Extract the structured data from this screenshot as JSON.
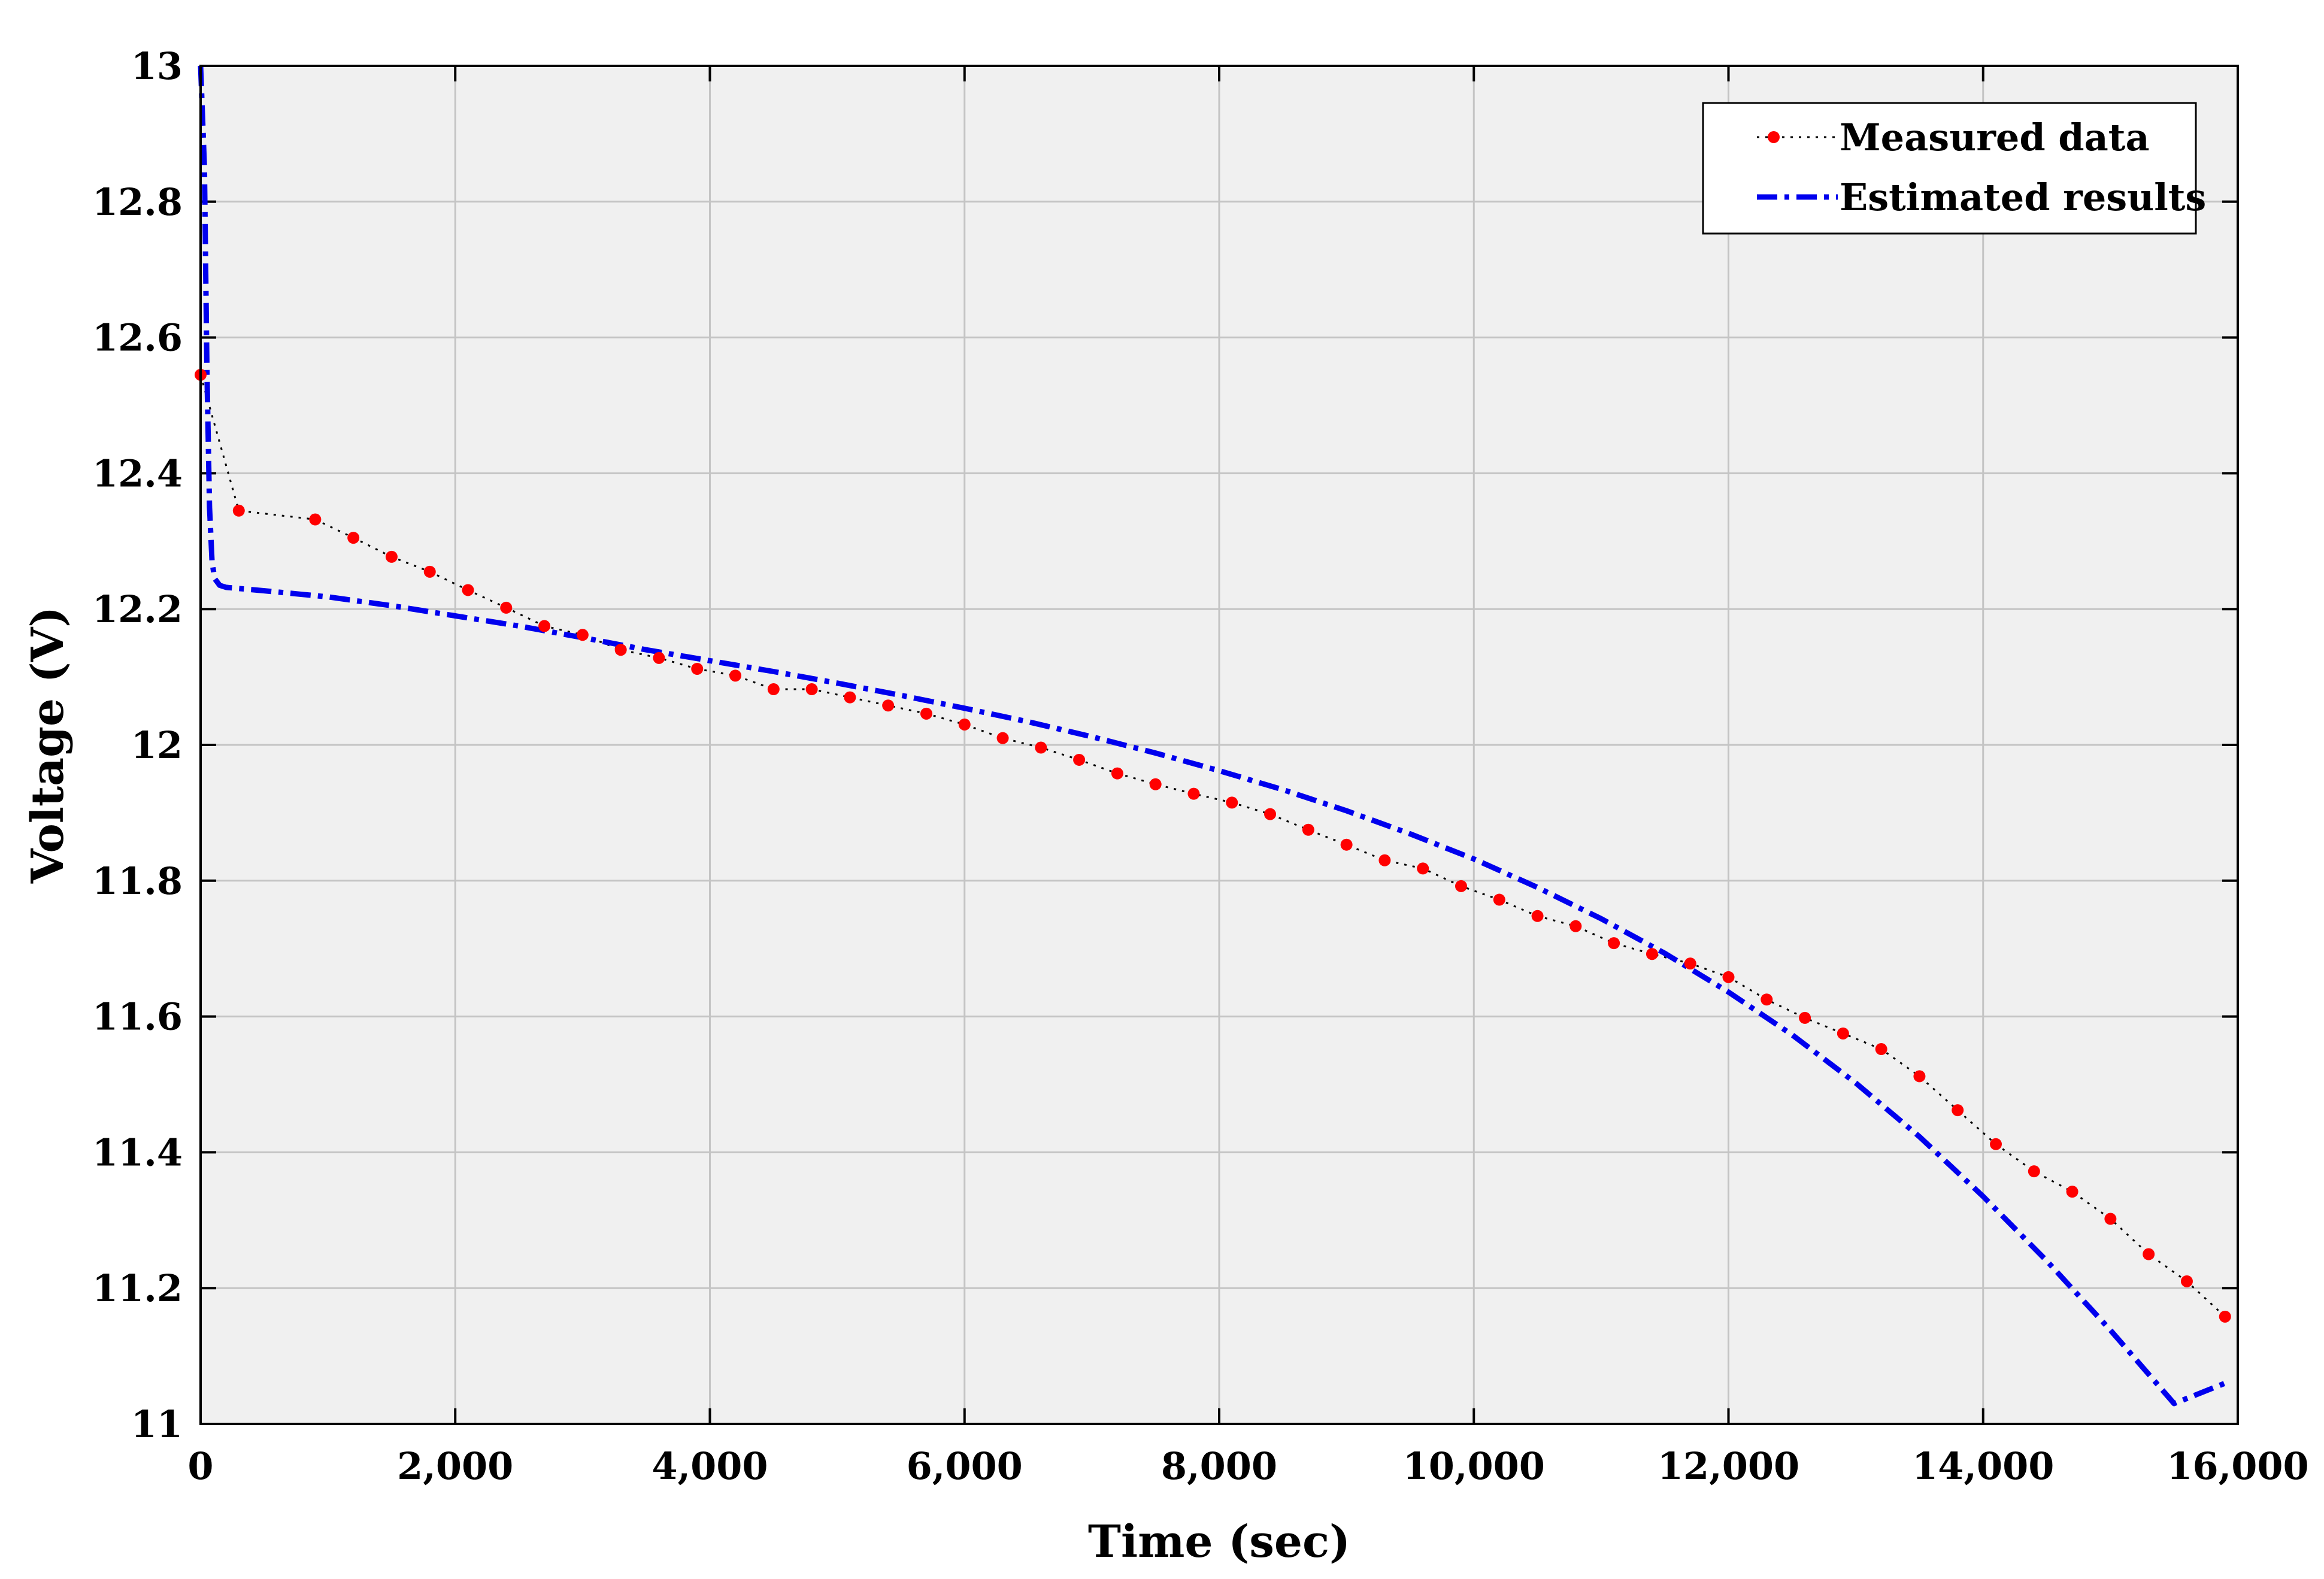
{
  "chart_data": {
    "type": "line",
    "xlabel": "Time (sec)",
    "ylabel": "Voltage (V)",
    "xlim": [
      0,
      16000
    ],
    "ylim": [
      11,
      13
    ],
    "x_ticks": [
      0,
      2000,
      4000,
      6000,
      8000,
      10000,
      12000,
      14000,
      16000
    ],
    "x_tick_labels": [
      "0",
      "2,000",
      "4,000",
      "6,000",
      "8,000",
      "10,000",
      "12,000",
      "14,000",
      "16,000"
    ],
    "y_ticks": [
      11,
      11.2,
      11.4,
      11.6,
      11.8,
      12,
      12.2,
      12.4,
      12.6,
      12.8,
      13
    ],
    "y_tick_labels": [
      "11",
      "11.2",
      "11.4",
      "11.6",
      "11.8",
      "12",
      "12.2",
      "12.4",
      "12.6",
      "12.8",
      "13"
    ],
    "grid": true,
    "legend_position": "top-right",
    "series": [
      {
        "name": "Measured data",
        "style": "dotted line with red circle markers",
        "color": "#ff0000",
        "line_color": "#000000",
        "x": [
          0,
          300,
          900,
          1200,
          1500,
          1800,
          2100,
          2400,
          2700,
          3000,
          3300,
          3600,
          3900,
          4200,
          4500,
          4800,
          5100,
          5400,
          5700,
          6000,
          6300,
          6600,
          6900,
          7200,
          7500,
          7800,
          8100,
          8400,
          8700,
          9000,
          9300,
          9600,
          9900,
          10200,
          10500,
          10800,
          11100,
          11400,
          11700,
          12000,
          12300,
          12600,
          12900,
          13200,
          13500,
          13800,
          14100,
          14400,
          14700,
          15000,
          15300,
          15600,
          15900
        ],
        "y": [
          12.545,
          12.345,
          12.332,
          12.305,
          12.277,
          12.255,
          12.228,
          12.202,
          12.175,
          12.162,
          12.14,
          12.128,
          12.112,
          12.102,
          12.082,
          12.082,
          12.07,
          12.058,
          12.046,
          12.03,
          12.01,
          11.996,
          11.978,
          11.958,
          11.942,
          11.928,
          11.915,
          11.898,
          11.875,
          11.853,
          11.83,
          11.818,
          11.792,
          11.772,
          11.748,
          11.733,
          11.708,
          11.692,
          11.678,
          11.658,
          11.625,
          11.598,
          11.575,
          11.552,
          11.512,
          11.462,
          11.412,
          11.372,
          11.342,
          11.302,
          11.25,
          11.21,
          11.158
        ]
      },
      {
        "name": "Estimated results",
        "style": "dash-dot line",
        "color": "#0000ee",
        "x": [
          0,
          30,
          50,
          70,
          90,
          110,
          150,
          200,
          500,
          1000,
          1500,
          2000,
          2500,
          3000,
          3500,
          4000,
          4500,
          5000,
          5500,
          6000,
          6500,
          7000,
          7500,
          8000,
          8500,
          9000,
          9500,
          10000,
          10500,
          11000,
          11500,
          12000,
          12500,
          13000,
          13500,
          14000,
          14500,
          15000,
          15500,
          15900
        ],
        "y": [
          13.0,
          12.85,
          12.55,
          12.35,
          12.27,
          12.245,
          12.235,
          12.232,
          12.227,
          12.218,
          12.205,
          12.19,
          12.175,
          12.158,
          12.14,
          12.124,
          12.108,
          12.091,
          12.073,
          12.054,
          12.034,
          12.012,
          11.988,
          11.962,
          11.934,
          11.903,
          11.869,
          11.832,
          11.79,
          11.744,
          11.693,
          11.636,
          11.573,
          11.502,
          11.423,
          11.335,
          11.24,
          11.138,
          11.03,
          11.06
        ]
      }
    ]
  }
}
